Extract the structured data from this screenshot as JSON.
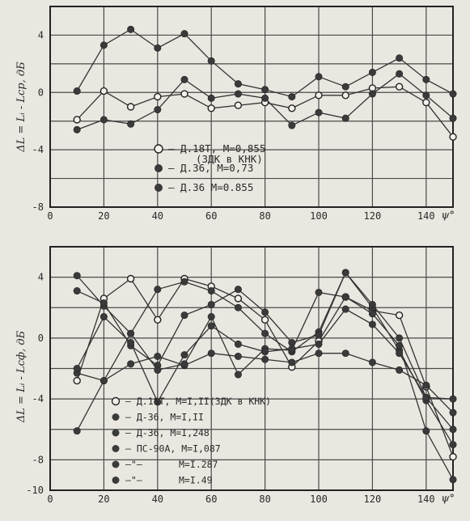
{
  "chart_data": [
    {
      "type": "scatter",
      "ylabel": "ΔL = Lᵢ - Lср, дБ",
      "xlabel": "ψ°",
      "xlim": [
        0,
        150
      ],
      "ylim": [
        -8,
        6
      ],
      "xticks": [
        0,
        20,
        40,
        60,
        80,
        100,
        120,
        140
      ],
      "yticks": [
        4,
        0,
        -4,
        -8
      ],
      "grid": true,
      "legend_position": "lower-center",
      "series": [
        {
          "name": "– Д.18Т, М=0,855 (ЗДК в КНК)",
          "legend_lines": [
            "– Д.18Т, М=0,855",
            "(ЗДК в КНК)"
          ],
          "marker": "open",
          "x": [
            10,
            20,
            30,
            40,
            50,
            60,
            70,
            80,
            90,
            100,
            110,
            120,
            130,
            140,
            150
          ],
          "y": [
            -1.9,
            0.1,
            -1.0,
            -0.3,
            -0.1,
            -1.1,
            -0.9,
            -0.7,
            -1.1,
            -0.2,
            -0.2,
            0.3,
            0.4,
            -0.7,
            -3.1
          ]
        },
        {
          "name": "– Д.36, М=0,73",
          "marker": "filled",
          "x": [
            10,
            20,
            30,
            40,
            50,
            60,
            70,
            80,
            90,
            100,
            110,
            120,
            130,
            140,
            150
          ],
          "y": [
            -2.6,
            -1.9,
            -2.2,
            -1.2,
            0.9,
            -0.4,
            -0.1,
            -0.4,
            -2.3,
            -1.4,
            -1.8,
            -0.1,
            1.3,
            -0.2,
            -1.8
          ]
        },
        {
          "name": "– Д.36 М=0.855",
          "marker": "filled",
          "x": [
            10,
            20,
            30,
            40,
            50,
            60,
            70,
            80,
            90,
            100,
            110,
            120,
            130,
            140,
            150
          ],
          "y": [
            0.1,
            3.3,
            4.4,
            3.1,
            4.1,
            2.2,
            0.6,
            0.2,
            -0.3,
            1.1,
            0.4,
            1.4,
            2.4,
            0.9,
            -0.1
          ]
        }
      ]
    },
    {
      "type": "scatter",
      "ylabel": "ΔL = Lᵢ - Lсф, дБ",
      "xlabel": "ψ°",
      "xlim": [
        0,
        150
      ],
      "ylim": [
        -10,
        6
      ],
      "xticks": [
        0,
        20,
        40,
        60,
        80,
        100,
        120,
        140
      ],
      "yticks": [
        4,
        0,
        -4,
        -8,
        -10
      ],
      "ytick_labels": [
        "4",
        "0",
        "-4",
        "-8",
        "-10"
      ],
      "grid": true,
      "legend_position": "lower-left",
      "series": [
        {
          "name": "– Д.18Т, М=I,II(ЗДК в КНК)",
          "marker": "open",
          "x": [
            10,
            20,
            30,
            40,
            50,
            60,
            70,
            80,
            90,
            100,
            110,
            120,
            130,
            140,
            150
          ],
          "y": [
            -2.8,
            2.6,
            3.9,
            1.2,
            3.9,
            3.4,
            2.6,
            1.2,
            -1.9,
            -0.2,
            2.7,
            1.8,
            1.5,
            -3.2,
            -7.8
          ]
        },
        {
          "name": "– Д-36, М=I,II",
          "marker": "filled",
          "x": [
            10,
            20,
            30,
            40,
            50,
            60,
            70,
            80,
            90,
            100,
            110,
            120,
            130,
            140,
            150
          ],
          "y": [
            4.1,
            2.1,
            0.3,
            3.2,
            3.7,
            3.1,
            2.0,
            0.3,
            -0.9,
            0.4,
            4.3,
            2.0,
            -0.8,
            -4.1,
            -7.0
          ]
        },
        {
          "name": "– Д-36, М=I,248",
          "marker": "filled",
          "x": [
            10,
            20,
            30,
            40,
            50,
            60,
            70,
            80,
            90,
            100,
            110,
            120,
            130,
            140,
            150
          ],
          "y": [
            3.1,
            2.3,
            -0.5,
            -1.8,
            1.5,
            2.2,
            3.2,
            1.7,
            -0.3,
            0.2,
            4.3,
            2.2,
            0.0,
            -3.9,
            -4.0
          ]
        },
        {
          "name": "– ПС-90А, М=I,087",
          "marker": "filled",
          "x": [
            10,
            20,
            30,
            40,
            50,
            60,
            70,
            80,
            90,
            100,
            110,
            120,
            130,
            140,
            150
          ],
          "y": [
            -2.3,
            -2.8,
            -1.7,
            -1.2,
            -1.8,
            -1.0,
            -1.2,
            -1.4,
            -1.6,
            -1.0,
            -1.0,
            -1.6,
            -2.1,
            -3.1,
            -4.9
          ]
        },
        {
          "name": "—\"— М=I.287",
          "name_parts": [
            "—\"—",
            "М=I.287"
          ],
          "marker": "filled",
          "x": [
            10,
            20,
            30,
            40,
            50,
            60,
            70,
            80,
            90,
            100,
            110,
            120,
            130,
            140,
            150
          ],
          "y": [
            -6.1,
            -2.8,
            0.3,
            -2.1,
            -1.7,
            1.4,
            -2.4,
            -0.7,
            -0.8,
            3.0,
            2.7,
            1.6,
            -0.5,
            -6.1,
            -9.3
          ]
        },
        {
          "name": "—\"— М=I.49",
          "name_parts": [
            "—\"—",
            "М=I.49"
          ],
          "marker": "filled",
          "x": [
            10,
            20,
            30,
            40,
            50,
            60,
            70,
            80,
            90,
            100,
            110,
            120,
            130,
            140,
            150
          ],
          "y": [
            -2.0,
            1.4,
            -0.3,
            -4.2,
            -1.1,
            0.8,
            -0.4,
            -0.9,
            -0.7,
            -0.4,
            1.9,
            0.9,
            -1.0,
            -3.9,
            -6.0
          ]
        }
      ]
    }
  ]
}
